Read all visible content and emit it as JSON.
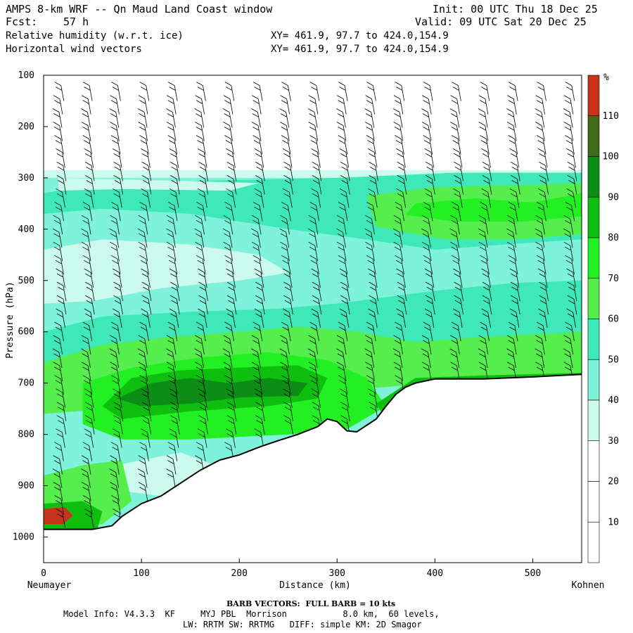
{
  "header": {
    "title": "AMPS 8-km WRF -- Qn Maud Land Coast window",
    "init": "Init: 00 UTC Thu 18 Dec 25",
    "fcst_label": "Fcst:",
    "fcst_value": "57 h",
    "valid": "Valid: 09 UTC Sat 20 Dec 25",
    "field1": "Relative humidity (w.r.t. ice)",
    "field2": "Horizontal wind vectors",
    "xy1": "XY= 461.9, 97.7 to 424.0,154.9",
    "xy2": "XY= 461.9, 97.7 to 424.0,154.9"
  },
  "axes": {
    "ylabel": "Pressure (hPa)",
    "xlabel": "Distance (km)",
    "left_end_label": "Neumayer",
    "right_end_label": "Kohnen"
  },
  "colors": {
    "c_0_30": "#ffffff",
    "c_30_40": "#ccfbee",
    "c_40_50": "#7ff2dc",
    "c_50_60": "#3ee8b8",
    "c_60_70": "#55ee4c",
    "c_70_80": "#22f022",
    "c_80_90": "#0fbf0f",
    "c_90_100": "#0b8d16",
    "c_100_110": "#3f6b1a",
    "c_110_up": "#c8331c",
    "terrain": "#ffffff"
  },
  "colorbar": {
    "unit": "%",
    "labels": [
      "110",
      "100",
      "90",
      "80",
      "70",
      "60",
      "50",
      "40",
      "30",
      "20",
      "10"
    ]
  },
  "chart_data": {
    "type": "heatmap",
    "title": "Relative humidity (w.r.t. ice) and horizontal wind vectors",
    "xlabel": "Distance (km)",
    "ylabel": "Pressure (hPa)",
    "xlim": [
      0,
      550
    ],
    "ylim": [
      1050,
      100
    ],
    "xticks": [
      0,
      100,
      200,
      300,
      400,
      500
    ],
    "yticks": [
      100,
      200,
      300,
      400,
      500,
      600,
      700,
      800,
      900,
      1000
    ],
    "colorbar_levels": [
      10,
      20,
      30,
      40,
      50,
      60,
      70,
      80,
      90,
      100,
      110
    ],
    "colorbar_unit": "%",
    "moist_top_hPa": 285,
    "surface_profile_km_hPa": [
      [
        0,
        985
      ],
      [
        50,
        985
      ],
      [
        70,
        978
      ],
      [
        80,
        960
      ],
      [
        100,
        935
      ],
      [
        120,
        920
      ],
      [
        140,
        895
      ],
      [
        160,
        870
      ],
      [
        180,
        850
      ],
      [
        200,
        840
      ],
      [
        220,
        825
      ],
      [
        240,
        812
      ],
      [
        260,
        800
      ],
      [
        280,
        785
      ],
      [
        290,
        770
      ],
      [
        300,
        775
      ],
      [
        310,
        793
      ],
      [
        320,
        795
      ],
      [
        340,
        770
      ],
      [
        350,
        745
      ],
      [
        360,
        722
      ],
      [
        370,
        708
      ],
      [
        380,
        700
      ],
      [
        400,
        692
      ],
      [
        450,
        692
      ],
      [
        500,
        688
      ],
      [
        550,
        683
      ]
    ],
    "features": [
      {
        "label": "RH 90-100% core",
        "x_km": [
          80,
          280
        ],
        "p_hPa": [
          680,
          760
        ]
      },
      {
        "label": "RH >110% near surface",
        "x_km": [
          0,
          30
        ],
        "p_hPa": [
          940,
          975
        ]
      },
      {
        "label": "RH 30-40% dry tongue",
        "x_km": [
          0,
          250
        ],
        "p_hPa": [
          430,
          520
        ]
      }
    ],
    "barb_note": "BARB VECTORS:  FULL BARB = 10 kts"
  },
  "footer": {
    "barb_note": "BARB VECTORS:  FULL BARB = 10 kts",
    "model_line1": "Model Info: V4.3.3  KF     MYJ PBL  Morrison           8.0 km,  60 levels,",
    "model_line2": "LW: RRTM SW: RRTMG   DIFF: simple KM: 2D Smagor"
  }
}
